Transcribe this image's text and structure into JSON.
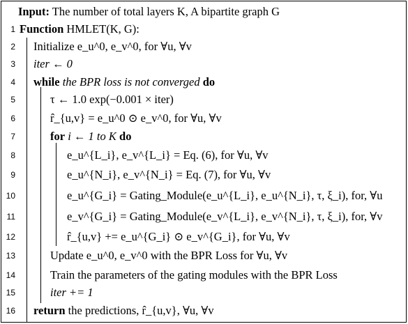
{
  "header": {
    "input_label": "Input:",
    "input_text": " The number of total layers K, A bipartite graph G"
  },
  "line_numbers": [
    "1",
    "2",
    "3",
    "4",
    "5",
    "6",
    "7",
    "8",
    "9",
    "10",
    "11",
    "12",
    "13",
    "14",
    "15",
    "16"
  ],
  "lines": {
    "l1_kw": "Function",
    "l1_text": " HMLET(K, G):",
    "l2_text": "Initialize e_u^0, e_v^0, for ∀u, ∀v",
    "l3_text": "iter ← 0",
    "l4_kw1": "while",
    "l4_cond": " the BPR loss is not converged ",
    "l4_kw2": "do",
    "l5_text": "τ ← 1.0 exp(−0.001 × iter)",
    "l6_text": "r̂_{u,v} = e_u^0 ⊙ e_v^0, for ∀u, ∀v",
    "l7_kw1": "for",
    "l7_cond": " i ← 1 to K ",
    "l7_kw2": "do",
    "l8_text": "e_u^{L_i}, e_v^{L_i} = Eq. (6), for ∀u, ∀v",
    "l9_text": "e_u^{N_i}, e_v^{N_i} = Eq. (7), for ∀u, ∀v",
    "l10_text": "e_u^{G_i} = Gating_Module(e_u^{L_i}, e_u^{N_i}, τ, ξ_i), for, ∀u",
    "l11_text": "e_v^{G_i} = Gating_Module(e_v^{L_i}, e_v^{N_i}, τ, ξ_i), for, ∀v",
    "l12_text": "r̂_{u,v} += e_u^{G_i} ⊙ e_v^{G_i}, for ∀u, ∀v",
    "l13_text": "Update e_u^0, e_v^0 with the BPR Loss for ∀u, ∀v",
    "l14_text": "Train the parameters of the gating modules with the BPR Loss",
    "l15_text": "iter += 1",
    "l16_kw": "return",
    "l16_text": " the predictions, r̂_{u,v}, ∀u, ∀v"
  }
}
